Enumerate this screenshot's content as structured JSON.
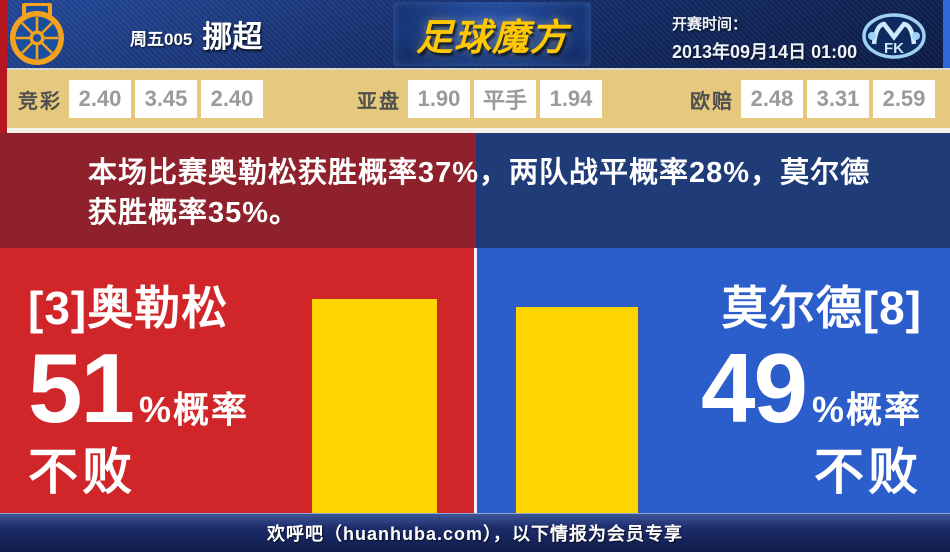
{
  "header": {
    "match_code": "周五005",
    "league": "挪超",
    "brand": "足球魔方",
    "kickoff_label": "开赛时间：",
    "kickoff_time": "2013年09月14日 01:00",
    "home_badge": "aalesund-crest",
    "away_badge": "molde-fk-crest"
  },
  "odds": {
    "groups": [
      {
        "label": "竞彩",
        "values": [
          "2.40",
          "3.45",
          "2.40"
        ]
      },
      {
        "label": "亚盘",
        "values": [
          "1.90",
          "平手",
          "1.94"
        ]
      },
      {
        "label": "欧赔",
        "values": [
          "2.48",
          "3.31",
          "2.59"
        ]
      }
    ]
  },
  "analysis": {
    "summary": "本场比赛奥勒松获胜概率37%，两队战平概率28%，莫尔德获胜概率35%。",
    "home_win_pct": 37,
    "draw_pct": 28,
    "away_win_pct": 35
  },
  "panels": {
    "home": {
      "name": "[3]奥勒松",
      "percent": "51",
      "suffix": "%概率",
      "result": "不败",
      "bar_pct": 51
    },
    "away": {
      "name": "莫尔德[8]",
      "percent": "49",
      "suffix": "%概率",
      "result": "不败",
      "bar_pct": 49
    }
  },
  "chart_data": {
    "type": "bar",
    "categories": [
      "奥勒松不败",
      "莫尔德不败"
    ],
    "values": [
      51,
      49
    ],
    "unit": "%",
    "colors": [
      "#ffd400",
      "#ffd400"
    ]
  },
  "footer": {
    "text": "欢呼吧（huanhuba.com），以下情报为会员专享"
  },
  "colors": {
    "header_navy": "#16306e",
    "odds_tan": "#e6c87e",
    "home_dark": "#8e212b",
    "home_bright": "#d0262a",
    "away_dark": "#1f3c78",
    "away_bright": "#2c5ecb",
    "bar_yellow": "#ffd400",
    "brand_gold": "#ffc800",
    "footer_navy": "#1d2d6b"
  }
}
